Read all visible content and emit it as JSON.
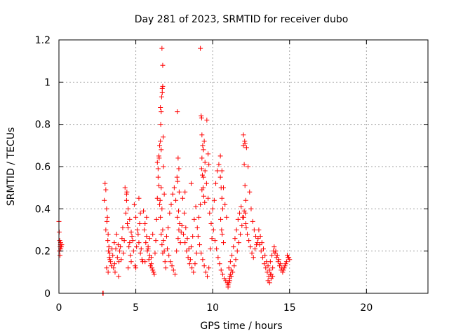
{
  "chart_data": {
    "type": "scatter",
    "title": "Day 281 of 2023, SRMTID for receiver dubo",
    "xlabel": "GPS time / hours",
    "ylabel": "SRMTID / TECUs",
    "xlim": [
      0,
      24
    ],
    "ylim": [
      0,
      1.2
    ],
    "x_ticks": [
      0,
      5,
      10,
      15,
      20
    ],
    "x_tick_labels": [
      "0",
      "5",
      "10",
      "15",
      "20"
    ],
    "y_ticks": [
      0,
      0.2,
      0.4,
      0.6,
      0.8,
      1.0,
      1.2
    ],
    "y_tick_labels": [
      "0",
      "0.2",
      "0.4",
      "0.6",
      "0.8",
      "1",
      "1.2"
    ],
    "grid": true,
    "marker": "+",
    "color": "#ff0000",
    "series": [
      {
        "name": "SRMTID",
        "x": [
          0.0,
          0.02,
          0.05,
          0.08,
          0.1,
          0.12,
          0.15,
          0.18,
          0.03,
          0.07,
          0.11,
          2.85,
          2.88,
          2.95,
          3.0,
          3.05,
          3.1,
          3.15,
          3.2,
          3.25,
          3.3,
          3.35,
          3.4,
          3.45,
          3.05,
          3.12,
          3.18,
          3.22,
          3.28,
          3.1,
          3.2,
          3.32,
          3.5,
          3.6,
          3.7,
          3.8,
          3.9,
          4.0,
          4.1,
          4.2,
          3.55,
          3.65,
          3.75,
          3.85,
          3.95,
          4.05,
          4.15,
          4.25,
          3.62,
          3.88,
          4.3,
          4.4,
          4.5,
          4.6,
          4.7,
          4.8,
          4.35,
          4.45,
          4.55,
          4.65,
          4.75,
          4.85,
          4.4,
          4.5,
          4.6,
          4.7,
          4.5,
          4.42,
          4.9,
          5.0,
          5.1,
          5.2,
          5.3,
          5.4,
          4.95,
          5.05,
          5.15,
          5.25,
          5.35,
          5.45,
          5.0,
          5.2,
          5.3,
          5.5,
          5.6,
          5.7,
          5.8,
          5.9,
          6.0,
          6.1,
          6.2,
          5.55,
          5.65,
          5.75,
          5.85,
          5.95,
          6.05,
          6.15,
          6.25,
          5.7,
          5.9,
          6.1,
          5.6,
          5.8,
          6.0,
          6.3,
          6.35,
          6.4,
          6.45,
          6.5,
          6.55,
          6.6,
          6.65,
          6.7,
          6.75,
          6.8,
          6.85,
          6.9,
          6.95,
          6.4,
          6.45,
          6.5,
          6.55,
          6.6,
          6.65,
          6.7,
          6.75,
          6.6,
          6.65,
          6.72,
          6.68,
          6.75,
          6.62,
          6.78,
          6.52,
          6.58,
          6.7,
          6.75,
          6.72,
          6.65,
          6.8,
          6.85,
          7.0,
          7.1,
          7.2,
          7.3,
          7.4,
          7.5,
          7.6,
          7.7,
          7.8,
          7.9,
          7.05,
          7.15,
          7.25,
          7.35,
          7.45,
          7.55,
          7.65,
          7.75,
          7.85,
          7.95,
          7.7,
          7.75,
          7.8,
          7.72,
          7.82,
          7.68,
          7.78,
          8.0,
          8.1,
          8.2,
          8.3,
          8.4,
          8.5,
          8.6,
          8.7,
          8.8,
          8.9,
          8.05,
          8.15,
          8.25,
          8.35,
          8.45,
          8.55,
          8.65,
          8.75,
          8.85,
          8.95,
          8.2,
          8.6,
          9.0,
          9.1,
          9.2,
          9.3,
          9.4,
          9.5,
          9.6,
          9.7,
          9.8,
          9.9,
          9.05,
          9.15,
          9.25,
          9.35,
          9.45,
          9.55,
          9.65,
          9.75,
          9.85,
          9.95,
          9.2,
          9.25,
          9.3,
          9.35,
          9.4,
          9.45,
          9.5,
          9.3,
          9.28,
          9.33,
          9.38,
          9.42,
          9.48,
          9.62,
          9.7,
          9.75,
          9.28,
          10.0,
          10.1,
          10.2,
          10.3,
          10.4,
          10.5,
          10.6,
          10.7,
          10.8,
          10.9,
          10.05,
          10.15,
          10.25,
          10.35,
          10.45,
          10.55,
          10.65,
          10.75,
          10.85,
          10.95,
          10.5,
          10.55,
          10.6,
          10.65,
          10.52,
          10.62,
          10.7,
          10.58,
          11.0,
          11.1,
          11.2,
          11.3,
          11.4,
          11.5,
          11.6,
          11.7,
          11.8,
          11.9,
          11.05,
          11.15,
          11.25,
          11.35,
          11.45,
          11.55,
          11.65,
          11.75,
          11.85,
          11.95,
          11.0,
          11.05,
          11.1,
          11.15,
          11.2,
          11.12,
          11.08,
          12.0,
          12.1,
          12.2,
          12.3,
          12.4,
          12.5,
          12.6,
          12.7,
          12.8,
          12.9,
          12.05,
          12.15,
          12.25,
          12.35,
          12.45,
          12.55,
          12.65,
          12.75,
          12.85,
          12.95,
          12.0,
          12.05,
          12.1,
          12.15,
          12.08,
          12.12,
          12.18,
          12.02,
          13.0,
          13.1,
          13.2,
          13.3,
          13.4,
          13.5,
          13.6,
          13.7,
          13.8,
          13.9,
          13.05,
          13.15,
          13.25,
          13.35,
          13.45,
          13.55,
          13.65,
          13.75,
          13.85,
          13.95,
          14.0,
          14.1,
          14.2,
          14.3,
          14.4,
          14.5,
          14.6,
          14.7,
          14.8,
          14.9,
          15.0,
          14.05,
          14.15,
          14.25,
          14.35,
          14.45,
          14.55,
          14.65,
          14.75,
          14.85,
          14.95,
          13.7,
          13.8,
          13.9,
          13.6,
          13.75
        ],
        "y": [
          0.34,
          0.29,
          0.25,
          0.22,
          0.23,
          0.21,
          0.22,
          0.23,
          0.2,
          0.18,
          0.24,
          0.0,
          0.0,
          0.44,
          0.52,
          0.49,
          0.4,
          0.36,
          0.28,
          0.22,
          0.19,
          0.15,
          0.13,
          0.21,
          0.3,
          0.34,
          0.25,
          0.2,
          0.17,
          0.12,
          0.1,
          0.16,
          0.18,
          0.24,
          0.21,
          0.17,
          0.15,
          0.22,
          0.26,
          0.19,
          0.12,
          0.1,
          0.28,
          0.23,
          0.2,
          0.16,
          0.31,
          0.25,
          0.14,
          0.08,
          0.5,
          0.47,
          0.4,
          0.35,
          0.29,
          0.25,
          0.38,
          0.33,
          0.22,
          0.18,
          0.27,
          0.2,
          0.44,
          0.31,
          0.24,
          0.15,
          0.12,
          0.48,
          0.42,
          0.36,
          0.3,
          0.24,
          0.19,
          0.16,
          0.13,
          0.22,
          0.28,
          0.33,
          0.21,
          0.15,
          0.12,
          0.45,
          0.38,
          0.39,
          0.33,
          0.27,
          0.22,
          0.18,
          0.14,
          0.11,
          0.09,
          0.3,
          0.24,
          0.2,
          0.16,
          0.13,
          0.12,
          0.1,
          0.19,
          0.36,
          0.26,
          0.28,
          0.15,
          0.21,
          0.17,
          0.25,
          0.35,
          0.45,
          0.55,
          0.65,
          0.7,
          0.72,
          0.5,
          0.4,
          0.3,
          0.25,
          0.2,
          0.15,
          0.12,
          0.62,
          0.59,
          0.51,
          0.42,
          0.36,
          0.28,
          0.23,
          0.19,
          0.88,
          0.86,
          0.95,
          0.93,
          0.98,
          0.8,
          0.74,
          0.64,
          0.44,
          1.16,
          1.08,
          0.97,
          0.68,
          0.6,
          0.47,
          0.27,
          0.31,
          0.38,
          0.42,
          0.47,
          0.5,
          0.44,
          0.36,
          0.3,
          0.24,
          0.21,
          0.18,
          0.15,
          0.13,
          0.11,
          0.09,
          0.2,
          0.26,
          0.33,
          0.29,
          0.86,
          0.64,
          0.59,
          0.53,
          0.48,
          0.55,
          0.39,
          0.32,
          0.28,
          0.24,
          0.2,
          0.17,
          0.14,
          0.22,
          0.27,
          0.35,
          0.41,
          0.45,
          0.38,
          0.31,
          0.26,
          0.21,
          0.16,
          0.12,
          0.1,
          0.14,
          0.19,
          0.48,
          0.52,
          0.31,
          0.36,
          0.42,
          0.49,
          0.55,
          0.58,
          0.52,
          0.45,
          0.38,
          0.33,
          0.27,
          0.23,
          0.19,
          0.16,
          0.13,
          0.1,
          0.08,
          0.12,
          0.21,
          0.26,
          1.16,
          0.84,
          0.75,
          0.7,
          0.68,
          0.72,
          0.62,
          0.64,
          0.59,
          0.56,
          0.5,
          0.46,
          0.43,
          0.82,
          0.66,
          0.61,
          0.83,
          0.4,
          0.44,
          0.52,
          0.58,
          0.61,
          0.65,
          0.58,
          0.5,
          0.42,
          0.36,
          0.3,
          0.25,
          0.21,
          0.17,
          0.14,
          0.11,
          0.09,
          0.07,
          0.06,
          0.05,
          0.55,
          0.5,
          0.45,
          0.4,
          0.35,
          0.28,
          0.24,
          0.3,
          0.04,
          0.06,
          0.08,
          0.1,
          0.13,
          0.16,
          0.2,
          0.24,
          0.28,
          0.32,
          0.12,
          0.15,
          0.18,
          0.22,
          0.26,
          0.3,
          0.35,
          0.38,
          0.41,
          0.36,
          0.03,
          0.05,
          0.07,
          0.09,
          0.11,
          0.08,
          0.06,
          0.75,
          0.71,
          0.69,
          0.6,
          0.48,
          0.4,
          0.34,
          0.3,
          0.27,
          0.24,
          0.39,
          0.33,
          0.28,
          0.25,
          0.22,
          0.19,
          0.17,
          0.21,
          0.23,
          0.26,
          0.7,
          0.61,
          0.51,
          0.44,
          0.72,
          0.38,
          0.31,
          0.36,
          0.3,
          0.27,
          0.24,
          0.21,
          0.18,
          0.15,
          0.13,
          0.11,
          0.09,
          0.12,
          0.23,
          0.2,
          0.17,
          0.14,
          0.12,
          0.1,
          0.08,
          0.15,
          0.18,
          0.2,
          0.22,
          0.2,
          0.18,
          0.16,
          0.14,
          0.12,
          0.11,
          0.13,
          0.15,
          0.17,
          0.16,
          0.19,
          0.17,
          0.15,
          0.13,
          0.11,
          0.1,
          0.12,
          0.14,
          0.18,
          0.17,
          0.05,
          0.07,
          0.08,
          0.06,
          0.09
        ]
      }
    ]
  }
}
